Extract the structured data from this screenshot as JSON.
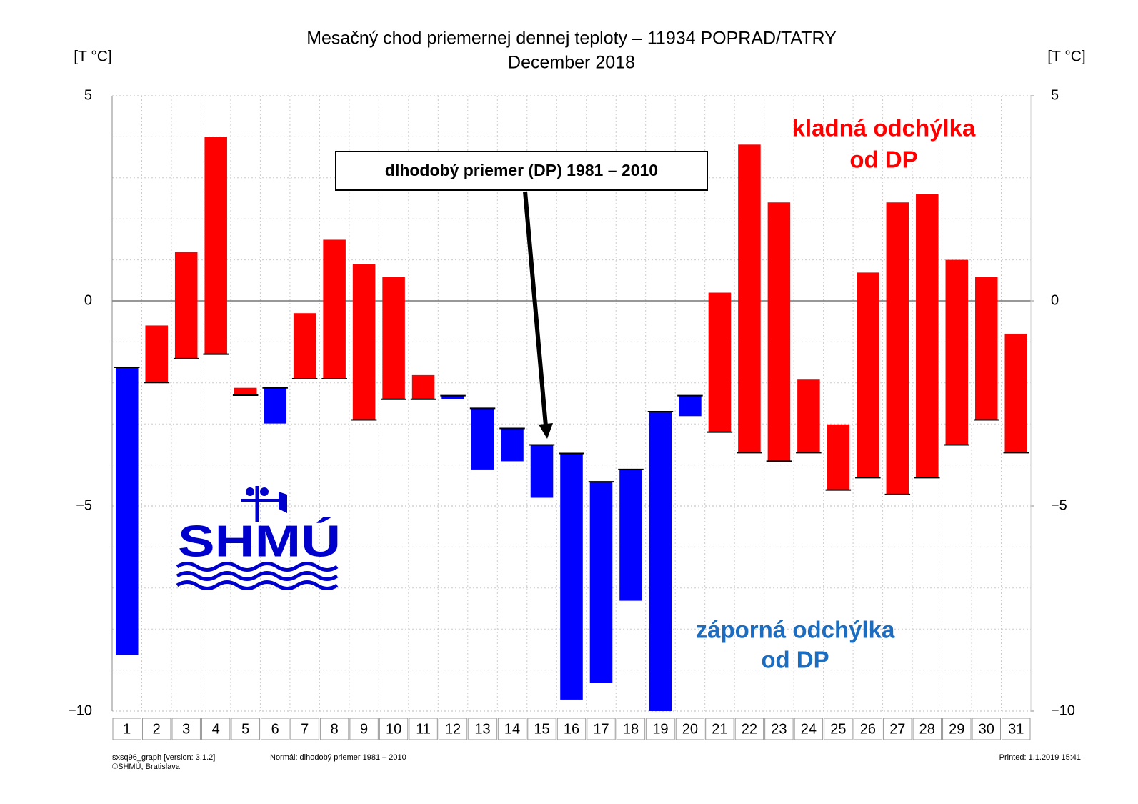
{
  "chart_data": {
    "type": "floating-bar",
    "title": "Mesačný chod priemernej dennej teploty – 11934 POPRAD/TATRY",
    "subtitle": "December 2018",
    "y_label": "[T °C]",
    "y2_label": "[T °C]",
    "categories": [
      "1",
      "2",
      "3",
      "4",
      "5",
      "6",
      "7",
      "8",
      "9",
      "10",
      "11",
      "12",
      "13",
      "14",
      "15",
      "16",
      "17",
      "18",
      "19",
      "20",
      "21",
      "22",
      "23",
      "24",
      "25",
      "26",
      "27",
      "28",
      "29",
      "30",
      "31"
    ],
    "temperature": [
      -8.63,
      -0.6,
      1.19,
      4.0,
      -2.12,
      -2.99,
      -0.3,
      1.49,
      0.89,
      0.59,
      -1.81,
      -2.4,
      -4.11,
      -3.91,
      -4.8,
      -9.72,
      -9.32,
      -7.31,
      -10.0,
      -2.81,
      0.2,
      3.81,
      2.4,
      -1.92,
      -3.01,
      0.69,
      2.4,
      2.6,
      1.0,
      0.59,
      -0.8
    ],
    "normal": [
      -1.62,
      -1.99,
      -1.41,
      -1.3,
      -2.3,
      -2.12,
      -1.9,
      -1.9,
      -2.9,
      -2.4,
      -2.4,
      -2.31,
      -2.62,
      -3.11,
      -3.51,
      -3.72,
      -4.41,
      -4.11,
      -2.7,
      -2.31,
      -3.2,
      -3.7,
      -3.91,
      -3.7,
      -4.61,
      -4.31,
      -4.72,
      -4.31,
      -3.51,
      -2.9,
      -3.7
    ],
    "above_color": "#ff0000",
    "below_color": "#0000ff",
    "ylim": [
      -10,
      5
    ],
    "yticks": [
      5,
      0,
      {
        "value": -5,
        "label": "−5"
      },
      {
        "value": -10,
        "label": "−10"
      }
    ],
    "y2lim": [
      -10,
      5
    ],
    "y2ticks": [
      5,
      0,
      {
        "value": -5,
        "label": "−5"
      },
      {
        "value": -10,
        "label": "−10"
      }
    ],
    "grid": true,
    "annotation": "dlhodobý priemer (DP) 1981 – 2010",
    "above_note": [
      "kladná odchýlka",
      "od DP"
    ],
    "below_note": [
      "záporná odchýlka",
      "od DP"
    ],
    "logo": "SHMÚ",
    "footer": {
      "program": "sxsq96_graph [version: 3.1.2]",
      "copyright": "©SHMÚ, Bratislava",
      "normal": "Normál: dlhodobý priemer 1981 – 2010",
      "printed": "Printed: 1.1.2019  15:41"
    }
  }
}
